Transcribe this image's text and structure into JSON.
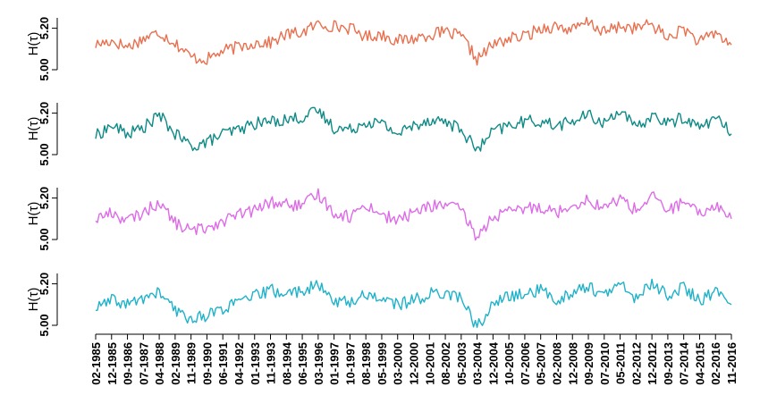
{
  "chart_data": {
    "type": "line",
    "layout": "stacked-panels",
    "x_dates": [
      "02-1985",
      "12-1985",
      "09-1986",
      "07-1987",
      "04-1988",
      "02-1989",
      "11-1989",
      "09-1990",
      "06-1991",
      "04-1992",
      "01-1993",
      "11-1993",
      "08-1994",
      "06-1995",
      "03-1996",
      "01-1997",
      "10-1997",
      "08-1998",
      "05-1999",
      "03-2000",
      "12-2000",
      "10-2001",
      "08-2002",
      "05-2003",
      "03-2004",
      "12-2004",
      "10-2005",
      "07-2006",
      "05-2007",
      "02-2008",
      "12-2008",
      "09-2009",
      "07-2010",
      "05-2011",
      "02-2012",
      "12-2012",
      "09-2013",
      "07-2014",
      "04-2015",
      "02-2016",
      "11-2016"
    ],
    "ylabel": "H(τ)",
    "yticks": [
      "5.00",
      "5.20"
    ],
    "ylim": [
      5.0,
      5.25
    ],
    "grid": false,
    "series": [
      {
        "color": "#E8704F",
        "values": [
          5.12,
          5.14,
          5.11,
          5.15,
          5.18,
          5.13,
          5.06,
          5.05,
          5.09,
          5.11,
          5.13,
          5.13,
          5.17,
          5.18,
          5.22,
          5.21,
          5.2,
          5.16,
          5.17,
          5.14,
          5.15,
          5.17,
          5.18,
          5.16,
          5.05,
          5.12,
          5.15,
          5.16,
          5.2,
          5.21,
          5.19,
          5.23,
          5.18,
          5.21,
          5.2,
          5.22,
          5.15,
          5.2,
          5.13,
          5.18,
          5.12
        ]
      },
      {
        "color": "#0E8A86",
        "values": [
          5.09,
          5.14,
          5.1,
          5.13,
          5.19,
          5.1,
          5.04,
          5.06,
          5.1,
          5.12,
          5.15,
          5.16,
          5.17,
          5.18,
          5.21,
          5.13,
          5.12,
          5.16,
          5.15,
          5.1,
          5.14,
          5.17,
          5.16,
          5.12,
          5.02,
          5.11,
          5.14,
          5.16,
          5.16,
          5.14,
          5.16,
          5.19,
          5.15,
          5.22,
          5.12,
          5.19,
          5.15,
          5.18,
          5.13,
          5.18,
          5.1
        ]
      },
      {
        "color": "#DD6BE8",
        "values": [
          5.1,
          5.13,
          5.09,
          5.13,
          5.18,
          5.08,
          5.04,
          5.06,
          5.09,
          5.12,
          5.14,
          5.18,
          5.17,
          5.16,
          5.22,
          5.13,
          5.11,
          5.17,
          5.12,
          5.09,
          5.13,
          5.16,
          5.17,
          5.14,
          5.01,
          5.11,
          5.13,
          5.15,
          5.16,
          5.13,
          5.17,
          5.19,
          5.15,
          5.2,
          5.14,
          5.21,
          5.14,
          5.18,
          5.12,
          5.17,
          5.1
        ]
      },
      {
        "color": "#1FB2C9",
        "values": [
          5.08,
          5.12,
          5.1,
          5.13,
          5.16,
          5.07,
          5.03,
          5.05,
          5.08,
          5.11,
          5.14,
          5.17,
          5.15,
          5.17,
          5.19,
          5.12,
          5.11,
          5.15,
          5.13,
          5.1,
          5.12,
          5.15,
          5.16,
          5.13,
          4.99,
          5.1,
          5.14,
          5.15,
          5.17,
          5.12,
          5.16,
          5.19,
          5.14,
          5.2,
          5.13,
          5.2,
          5.15,
          5.18,
          5.12,
          5.16,
          5.1
        ]
      }
    ]
  }
}
